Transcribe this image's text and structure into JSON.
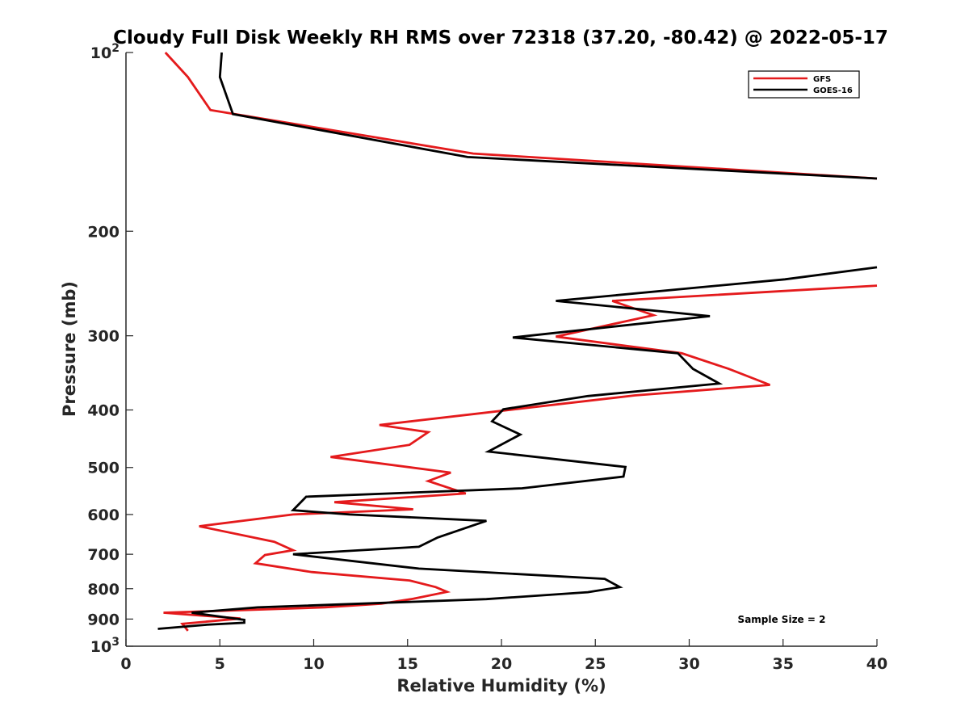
{
  "chart_data": {
    "type": "line",
    "title": "Cloudy Full Disk Weekly RH RMS over 72318 (37.20, -80.42) @ 2022-05-17",
    "xlabel": "Relative Humidity (%)",
    "ylabel": "Pressure (mb)",
    "xlim": [
      0,
      40
    ],
    "ylim": [
      100,
      1000
    ],
    "yscale": "log",
    "y_reversed": true,
    "xticks": [
      0,
      5,
      10,
      15,
      20,
      25,
      30,
      35,
      40
    ],
    "xtick_labels": [
      "0",
      "5",
      "10",
      "15",
      "20",
      "25",
      "30",
      "35",
      "40"
    ],
    "yticks": [
      {
        "value": 100,
        "base": "10",
        "exp": "2"
      },
      {
        "value": 200,
        "label": "200"
      },
      {
        "value": 300,
        "label": "300"
      },
      {
        "value": 400,
        "label": "400"
      },
      {
        "value": 500,
        "label": "500"
      },
      {
        "value": 600,
        "label": "600"
      },
      {
        "value": 700,
        "label": "700"
      },
      {
        "value": 800,
        "label": "800"
      },
      {
        "value": 900,
        "label": "900"
      },
      {
        "value": 1000,
        "base": "10",
        "exp": "3"
      }
    ],
    "legend_position": "top-right",
    "annotation": "Sample Size = 2",
    "series": [
      {
        "name": "GFS",
        "color": "#e41a1c",
        "points": [
          [
            2.1,
            100
          ],
          [
            3.3,
            110
          ],
          [
            4.5,
            125
          ],
          [
            18.5,
            148
          ],
          [
            40,
            163
          ],
          [
            null,
            null
          ],
          [
            40,
            247
          ],
          [
            25.9,
            262
          ],
          [
            28.1,
            277
          ],
          [
            22.9,
            301
          ],
          [
            29.6,
            321
          ],
          [
            32.1,
            341
          ],
          [
            34.3,
            363
          ],
          [
            27.1,
            378
          ],
          [
            20.1,
            401
          ],
          [
            13.5,
            424
          ],
          [
            16.1,
            436
          ],
          [
            15.1,
            458
          ],
          [
            10.9,
            480
          ],
          [
            17.3,
            510
          ],
          [
            16.1,
            527
          ],
          [
            18.1,
            553
          ],
          [
            11.1,
            572
          ],
          [
            15.3,
            588
          ],
          [
            8.9,
            600
          ],
          [
            3.9,
            628
          ],
          [
            7.9,
            667
          ],
          [
            8.9,
            689
          ],
          [
            7.4,
            702
          ],
          [
            6.9,
            725
          ],
          [
            9.9,
            750
          ],
          [
            15.1,
            775
          ],
          [
            16.5,
            795
          ],
          [
            17.1,
            810
          ],
          [
            15.3,
            832
          ],
          [
            13.6,
            848
          ],
          [
            10.6,
            860
          ],
          [
            2.0,
            878
          ],
          [
            6.1,
            898
          ],
          [
            3.0,
            917
          ],
          [
            3.3,
            942
          ]
        ]
      },
      {
        "name": "GOES-16",
        "color": "#000000",
        "points": [
          [
            5.1,
            100
          ],
          [
            5.0,
            110
          ],
          [
            5.7,
            127
          ],
          [
            18.2,
            150
          ],
          [
            40,
            163
          ],
          [
            null,
            null
          ],
          [
            40,
            230
          ],
          [
            35.1,
            241
          ],
          [
            22.9,
            262
          ],
          [
            31.1,
            278
          ],
          [
            20.6,
            302
          ],
          [
            29.4,
            321
          ],
          [
            30.2,
            341
          ],
          [
            31.6,
            361
          ],
          [
            24.6,
            379
          ],
          [
            20.1,
            399
          ],
          [
            19.5,
            418
          ],
          [
            21.0,
            440
          ],
          [
            19.3,
            470
          ],
          [
            26.6,
            499
          ],
          [
            26.5,
            518
          ],
          [
            21.1,
            542
          ],
          [
            9.6,
            560
          ],
          [
            8.9,
            590
          ],
          [
            11.9,
            600
          ],
          [
            19.2,
            615
          ],
          [
            16.6,
            656
          ],
          [
            15.6,
            680
          ],
          [
            8.9,
            700
          ],
          [
            15.6,
            740
          ],
          [
            25.5,
            770
          ],
          [
            26.3,
            795
          ],
          [
            24.6,
            811
          ],
          [
            19.2,
            833
          ],
          [
            7.0,
            860
          ],
          [
            3.5,
            878
          ],
          [
            6.3,
            903
          ],
          [
            6.3,
            913
          ],
          [
            4.3,
            920
          ],
          [
            1.7,
            935
          ]
        ]
      }
    ]
  }
}
